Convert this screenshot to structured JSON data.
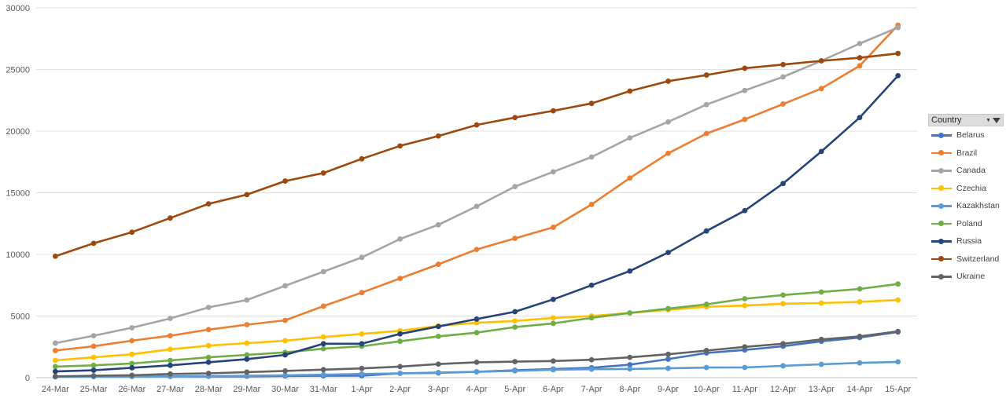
{
  "chart_data": {
    "type": "line",
    "categories": [
      "24-Mar",
      "25-Mar",
      "26-Mar",
      "27-Mar",
      "28-Mar",
      "29-Mar",
      "30-Mar",
      "31-Mar",
      "1-Apr",
      "2-Apr",
      "3-Apr",
      "4-Apr",
      "5-Apr",
      "6-Apr",
      "7-Apr",
      "8-Apr",
      "9-Apr",
      "10-Apr",
      "11-Apr",
      "12-Apr",
      "13-Apr",
      "14-Apr",
      "15-Apr"
    ],
    "ylim": [
      0,
      30000
    ],
    "yticks": [
      0,
      5000,
      10000,
      15000,
      20000,
      25000,
      30000
    ],
    "grid": true,
    "legend_position": "right",
    "legend_title": "Country",
    "series": [
      {
        "name": "Belarus",
        "color": "#4472c4",
        "values": [
          80,
          90,
          95,
          100,
          105,
          110,
          140,
          150,
          160,
          350,
          380,
          480,
          600,
          700,
          800,
          1050,
          1500,
          2000,
          2250,
          2550,
          2950,
          3250,
          3700
        ]
      },
      {
        "name": "Brazil",
        "color": "#ed7d31",
        "values": [
          2200,
          2550,
          3000,
          3400,
          3900,
          4300,
          4650,
          5800,
          6900,
          8050,
          9200,
          10400,
          11300,
          12200,
          14050,
          16200,
          18200,
          19800,
          20950,
          22200,
          23450,
          25300,
          28600
        ]
      },
      {
        "name": "Canada",
        "color": "#a5a5a5",
        "values": [
          2800,
          3400,
          4050,
          4800,
          5700,
          6300,
          7450,
          8600,
          9750,
          11250,
          12400,
          13900,
          15500,
          16700,
          17900,
          19450,
          20750,
          22150,
          23300,
          24400,
          25700,
          27100,
          28400
        ]
      },
      {
        "name": "Czechia",
        "color": "#ffc000",
        "values": [
          1400,
          1650,
          1900,
          2300,
          2600,
          2800,
          3000,
          3300,
          3550,
          3800,
          4200,
          4450,
          4600,
          4850,
          5000,
          5250,
          5500,
          5750,
          5850,
          6000,
          6050,
          6150,
          6300
        ]
      },
      {
        "name": "Kazakhstan",
        "color": "#5b9bd5",
        "values": [
          70,
          80,
          95,
          110,
          130,
          150,
          190,
          240,
          300,
          350,
          420,
          470,
          550,
          640,
          690,
          710,
          760,
          820,
          830,
          960,
          1080,
          1200,
          1280
        ]
      },
      {
        "name": "Poland",
        "color": "#70ad47",
        "values": [
          900,
          1000,
          1150,
          1400,
          1650,
          1850,
          2050,
          2350,
          2550,
          2950,
          3350,
          3650,
          4100,
          4400,
          4850,
          5250,
          5600,
          5950,
          6400,
          6700,
          6950,
          7200,
          7600
        ]
      },
      {
        "name": "Russia",
        "color": "#264478",
        "values": [
          500,
          600,
          800,
          1000,
          1250,
          1500,
          1850,
          2750,
          2750,
          3550,
          4150,
          4750,
          5350,
          6350,
          7500,
          8650,
          10150,
          11900,
          13550,
          15750,
          18350,
          21100,
          24500
        ]
      },
      {
        "name": "Switzerland",
        "color": "#9e480e",
        "values": [
          9850,
          10900,
          11800,
          12950,
          14100,
          14850,
          15950,
          16600,
          17750,
          18800,
          19600,
          20500,
          21100,
          21650,
          22250,
          23250,
          24050,
          24550,
          25100,
          25400,
          25700,
          25950,
          26300
        ]
      },
      {
        "name": "Ukraine",
        "color": "#636363",
        "values": [
          100,
          150,
          200,
          300,
          350,
          450,
          550,
          650,
          750,
          900,
          1100,
          1250,
          1300,
          1350,
          1450,
          1650,
          1900,
          2200,
          2500,
          2750,
          3100,
          3350,
          3750
        ]
      }
    ]
  }
}
